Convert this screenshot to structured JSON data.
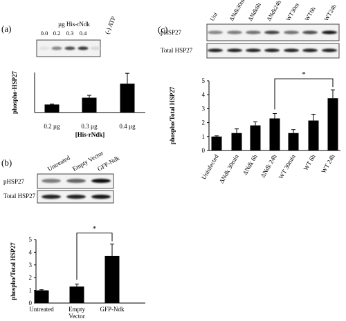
{
  "panels": {
    "a": {
      "label": "(a)",
      "blot": {
        "header": "µg  His-rNdk",
        "extra_header": "(-) ATP",
        "lane_labels": [
          "0.0",
          "0.2",
          "0.3",
          "0.4"
        ],
        "band_intensity": [
          0.04,
          0.45,
          0.7,
          0.8,
          0.08
        ]
      }
    },
    "b": {
      "label": "(b)",
      "blot": {
        "lane_labels": [
          "Untreated",
          "Empty Vector",
          "GFP-Ndk"
        ],
        "rows": [
          {
            "label": "pHSP27",
            "band_intensity": [
              0.5,
              0.6,
              0.98
            ]
          },
          {
            "label": "Total HSP27",
            "band_intensity": [
              0.9,
              0.9,
              0.95
            ]
          }
        ]
      }
    },
    "c": {
      "label": "(c)",
      "blot": {
        "lane_labels": [
          "Uni",
          "ΔNdk30m",
          "ΔNdk6h",
          "ΔNdk24h",
          "WT30m",
          "WT6h",
          "WT24h"
        ],
        "rows": [
          {
            "label": "pHSP27",
            "band_intensity": [
              0.45,
              0.5,
              0.55,
              0.75,
              0.55,
              0.7,
              0.95
            ]
          },
          {
            "label": "Total HSP27",
            "band_intensity": [
              0.9,
              0.9,
              0.9,
              0.9,
              0.9,
              0.9,
              0.9
            ]
          }
        ]
      }
    }
  },
  "chart_data": [
    {
      "panel": "a",
      "type": "bar",
      "categories": [
        "0.2 µg",
        "0.3 µg",
        "0.4 µg"
      ],
      "values": [
        1.0,
        1.85,
        3.6
      ],
      "errors": [
        0.05,
        0.3,
        1.3
      ],
      "ylabel": "phospho-HSP27",
      "xlabel": "[His-rNdk]",
      "ylim": [
        0,
        5
      ],
      "yticks": [],
      "significance": null
    },
    {
      "panel": "b",
      "type": "bar",
      "categories": [
        "Untreated",
        "Empty Vector",
        "GFP-Ndk"
      ],
      "values": [
        1.0,
        1.3,
        3.7
      ],
      "errors": [
        0.05,
        0.2,
        0.95
      ],
      "ylabel": "phospho/Total  HSP27",
      "xlabel": "",
      "ylim": [
        0,
        5
      ],
      "yticks": [
        0,
        1,
        2,
        3,
        4,
        5
      ],
      "significance": {
        "from": 1,
        "to": 2,
        "label": "*"
      }
    },
    {
      "panel": "c",
      "type": "bar",
      "categories": [
        "Uninfected",
        "ΔNdk 30min",
        "ΔNdk 6h",
        "ΔNdk 24h",
        "WT 30min",
        "WT 6h",
        "WT 24h"
      ],
      "values": [
        1.0,
        1.25,
        1.8,
        2.3,
        1.25,
        2.15,
        3.75
      ],
      "errors": [
        0.05,
        0.3,
        0.25,
        0.35,
        0.25,
        0.45,
        0.6
      ],
      "ylabel": "phospho/Total  HSP27",
      "xlabel": "",
      "ylim": [
        0,
        5
      ],
      "yticks": [
        0,
        1,
        2,
        3,
        4,
        5
      ],
      "significance": {
        "from": 3,
        "to": 6,
        "label": "*"
      }
    }
  ]
}
